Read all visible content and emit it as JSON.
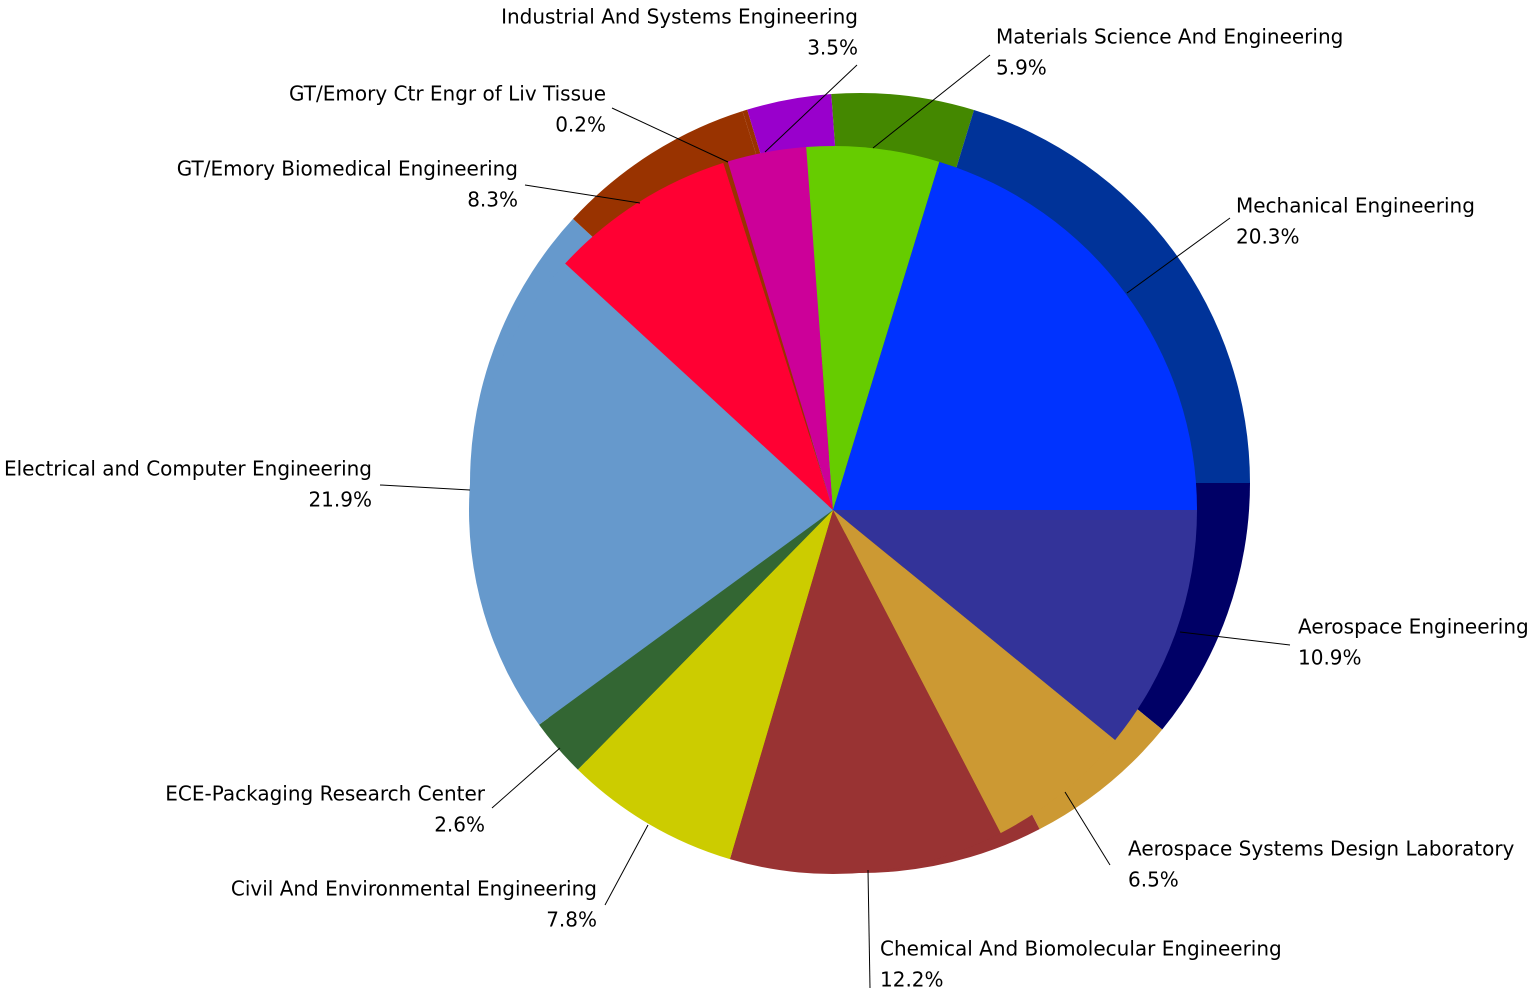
{
  "chart_data": {
    "type": "pie",
    "categories": [
      "Aerospace Engineering",
      "Aerospace Systems Design Laboratory",
      "Chemical And Biomolecular Engineering",
      "Civil And Environmental Engineering",
      "ECE-Packaging Research Center",
      "Electrical and Computer Engineering",
      "GT/Emory Biomedical Engineering",
      "GT/Emory Ctr Engr of Liv Tissue",
      "Industrial And Systems Engineering",
      "Materials Science And Engineering",
      "Mechanical Engineering"
    ],
    "values": [
      10.9,
      6.5,
      12.2,
      7.8,
      2.6,
      21.9,
      8.3,
      0.2,
      3.5,
      5.9,
      20.3
    ],
    "value_labels": [
      "10.9%",
      "6.5%",
      "12.2%",
      "7.8%",
      "2.6%",
      "21.9%",
      "8.3%",
      "0.2%",
      "3.5%",
      "5.9%",
      "20.3%"
    ],
    "colors": [
      "#333399",
      "#cc9933",
      "#993333",
      "#cccc00",
      "#336633",
      "#6699cc",
      "#ff0033",
      "#993300",
      "#cc0099",
      "#66cc00",
      "#0033ff"
    ],
    "depth_colors": [
      "#000066",
      "#cc9933",
      "#993333",
      "#cccc00",
      "#336633",
      "#6699cc",
      "#993300",
      "#993300",
      "#9900cc",
      "#448800",
      "#003399"
    ]
  }
}
